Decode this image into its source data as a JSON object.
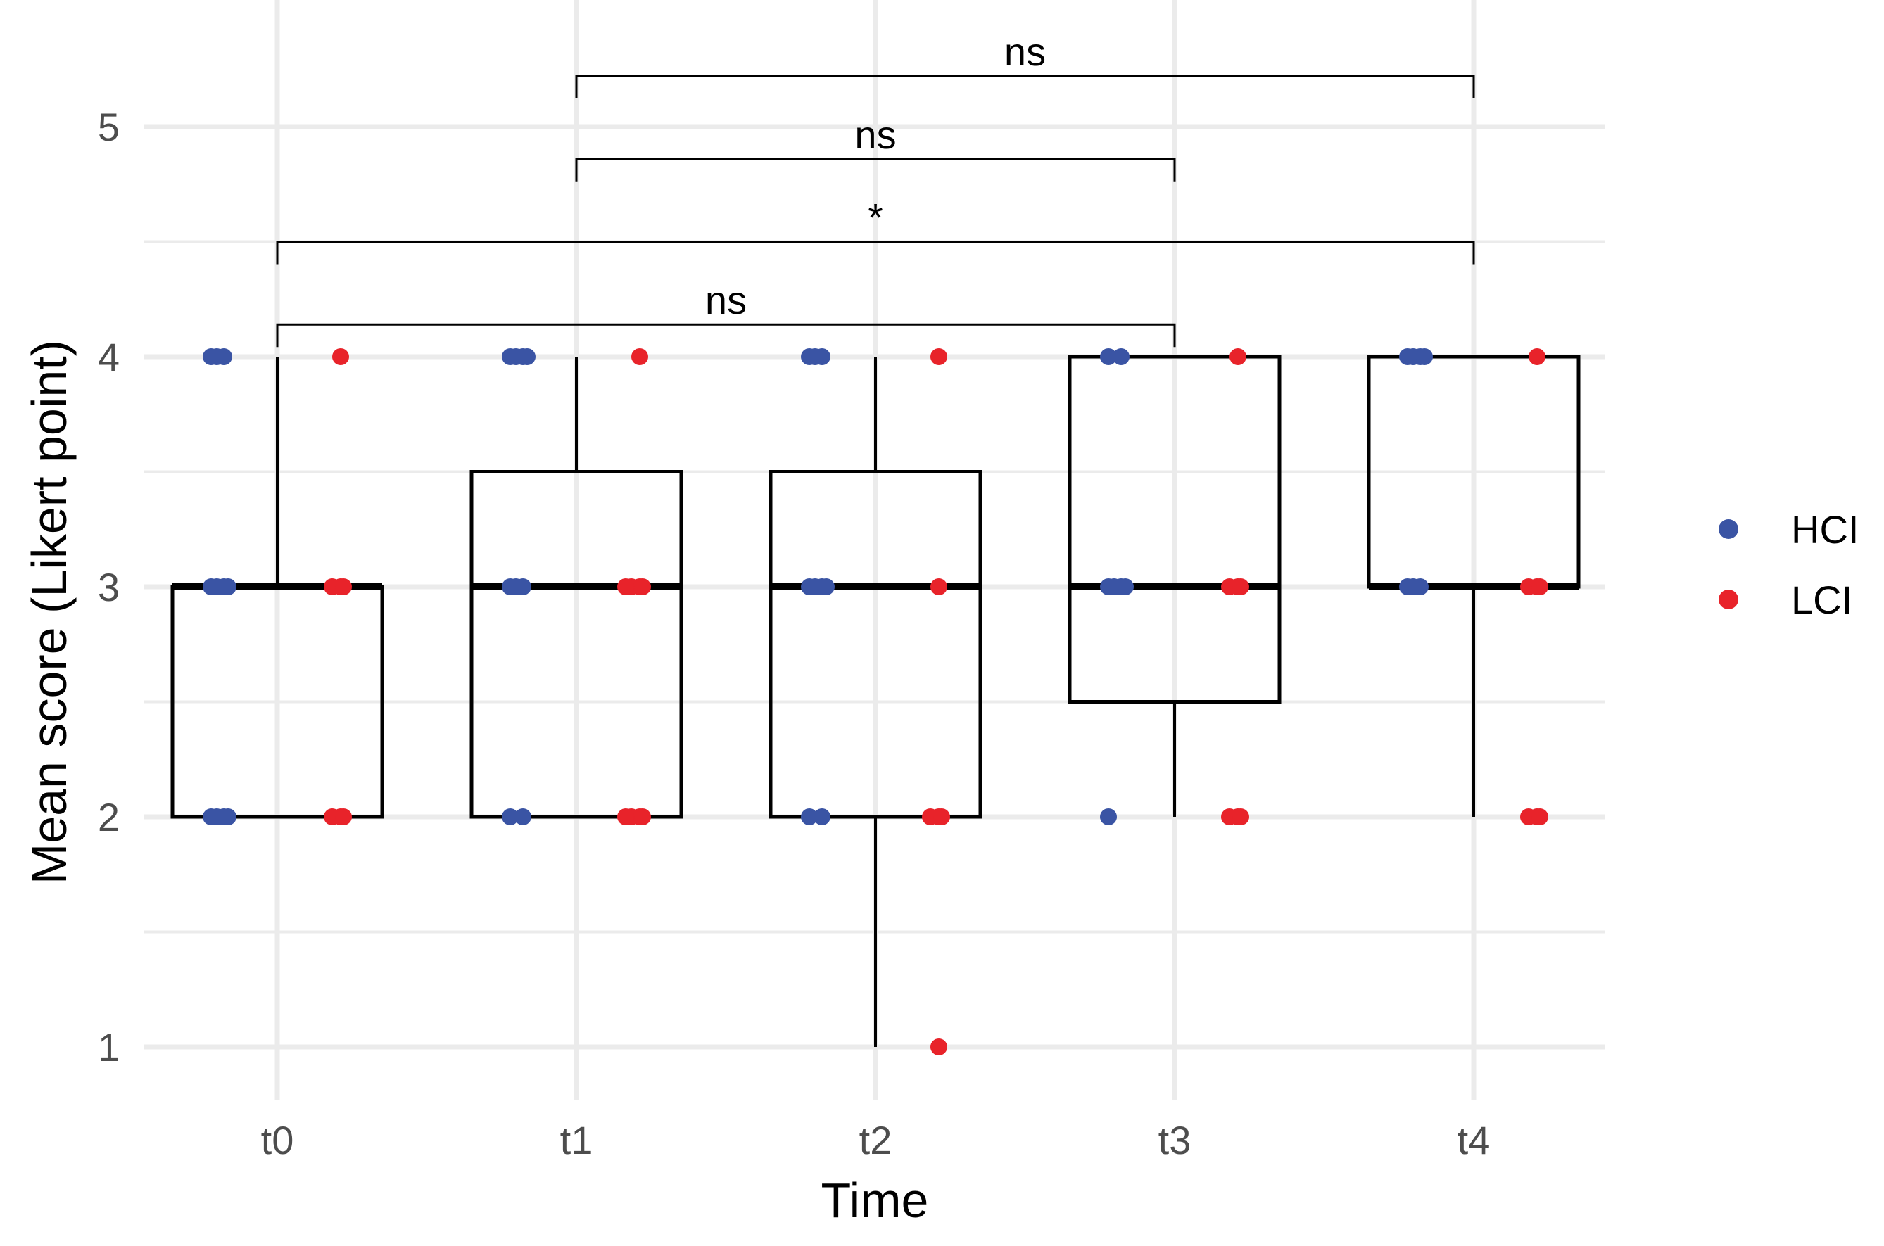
{
  "chart_data": {
    "type": "boxplot",
    "xlabel": "Time",
    "ylabel": "Mean score (Likert point)",
    "categories": [
      "t0",
      "t1",
      "t2",
      "t3",
      "t4"
    ],
    "ylim": [
      0.8,
      5.5
    ],
    "yticks": [
      1,
      2,
      3,
      4,
      5
    ],
    "grid": true,
    "legend_position": "right",
    "boxes": [
      {
        "category": "t0",
        "q1": 2,
        "median": 3,
        "q3": 3,
        "whisker_low": 2,
        "whisker_high": 4
      },
      {
        "category": "t1",
        "q1": 2,
        "median": 3,
        "q3": 3.5,
        "whisker_low": 2,
        "whisker_high": 4
      },
      {
        "category": "t2",
        "q1": 2,
        "median": 3,
        "q3": 3.5,
        "whisker_low": 1,
        "whisker_high": 4
      },
      {
        "category": "t3",
        "q1": 2.5,
        "median": 3,
        "q3": 4,
        "whisker_low": 2,
        "whisker_high": 4
      },
      {
        "category": "t4",
        "q1": 3,
        "median": 3,
        "q3": 4,
        "whisker_low": 2,
        "whisker_high": 4
      }
    ],
    "series": [
      {
        "name": "HCI",
        "color": "#3a54a4",
        "points": [
          {
            "category": "t0",
            "values": [
              4,
              4,
              4,
              3,
              3,
              3,
              3,
              2,
              2,
              2,
              2
            ]
          },
          {
            "category": "t1",
            "values": [
              4,
              4,
              4,
              4,
              3,
              3,
              3,
              2,
              2
            ]
          },
          {
            "category": "t2",
            "values": [
              4,
              4,
              4,
              3,
              3,
              3,
              3,
              2,
              2
            ]
          },
          {
            "category": "t3",
            "values": [
              4,
              4,
              3,
              3,
              3,
              3,
              2
            ]
          },
          {
            "category": "t4",
            "values": [
              4,
              4,
              4,
              4,
              3,
              3,
              3
            ]
          }
        ]
      },
      {
        "name": "LCI",
        "color": "#e8232a",
        "points": [
          {
            "category": "t0",
            "values": [
              4,
              3,
              3,
              3,
              2,
              2,
              2
            ]
          },
          {
            "category": "t1",
            "values": [
              4,
              3,
              3,
              3,
              3,
              2,
              2,
              2,
              2
            ]
          },
          {
            "category": "t2",
            "values": [
              4,
              3,
              2,
              2,
              2,
              1
            ]
          },
          {
            "category": "t3",
            "values": [
              4,
              3,
              3,
              3,
              2,
              2,
              2
            ]
          },
          {
            "category": "t4",
            "values": [
              4,
              3,
              3,
              3,
              2,
              2,
              2
            ]
          }
        ]
      }
    ],
    "comparisons": [
      {
        "from": "t1",
        "to": "t4",
        "y": 5.22,
        "label": "ns"
      },
      {
        "from": "t1",
        "to": "t3",
        "y": 4.86,
        "label": "ns"
      },
      {
        "from": "t0",
        "to": "t4",
        "y": 4.5,
        "label": "*"
      },
      {
        "from": "t0",
        "to": "t3",
        "y": 4.14,
        "label": "ns"
      }
    ]
  }
}
